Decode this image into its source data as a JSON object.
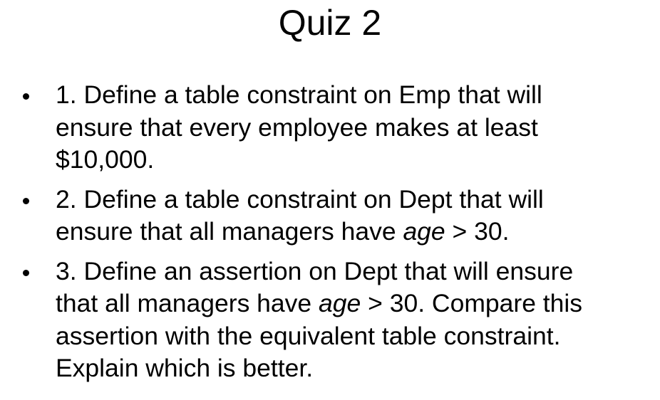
{
  "title": "Quiz 2",
  "items": [
    {
      "lines": [
        [
          "1. Define a table constraint on Emp that will"
        ],
        [
          "ensure that every employee makes at least"
        ],
        [
          "$10,000."
        ]
      ]
    },
    {
      "lines": [
        [
          "2. Define a table constraint on Dept that will"
        ],
        [
          "ensure that all managers have ",
          "age",
          " > 30."
        ]
      ]
    },
    {
      "lines": [
        [
          "3. Define an assertion on Dept that will ensure"
        ],
        [
          "that all managers have ",
          "age",
          " > 30. Compare this"
        ],
        [
          "assertion with the equivalent table constraint."
        ],
        [
          "Explain which is better."
        ]
      ]
    }
  ]
}
